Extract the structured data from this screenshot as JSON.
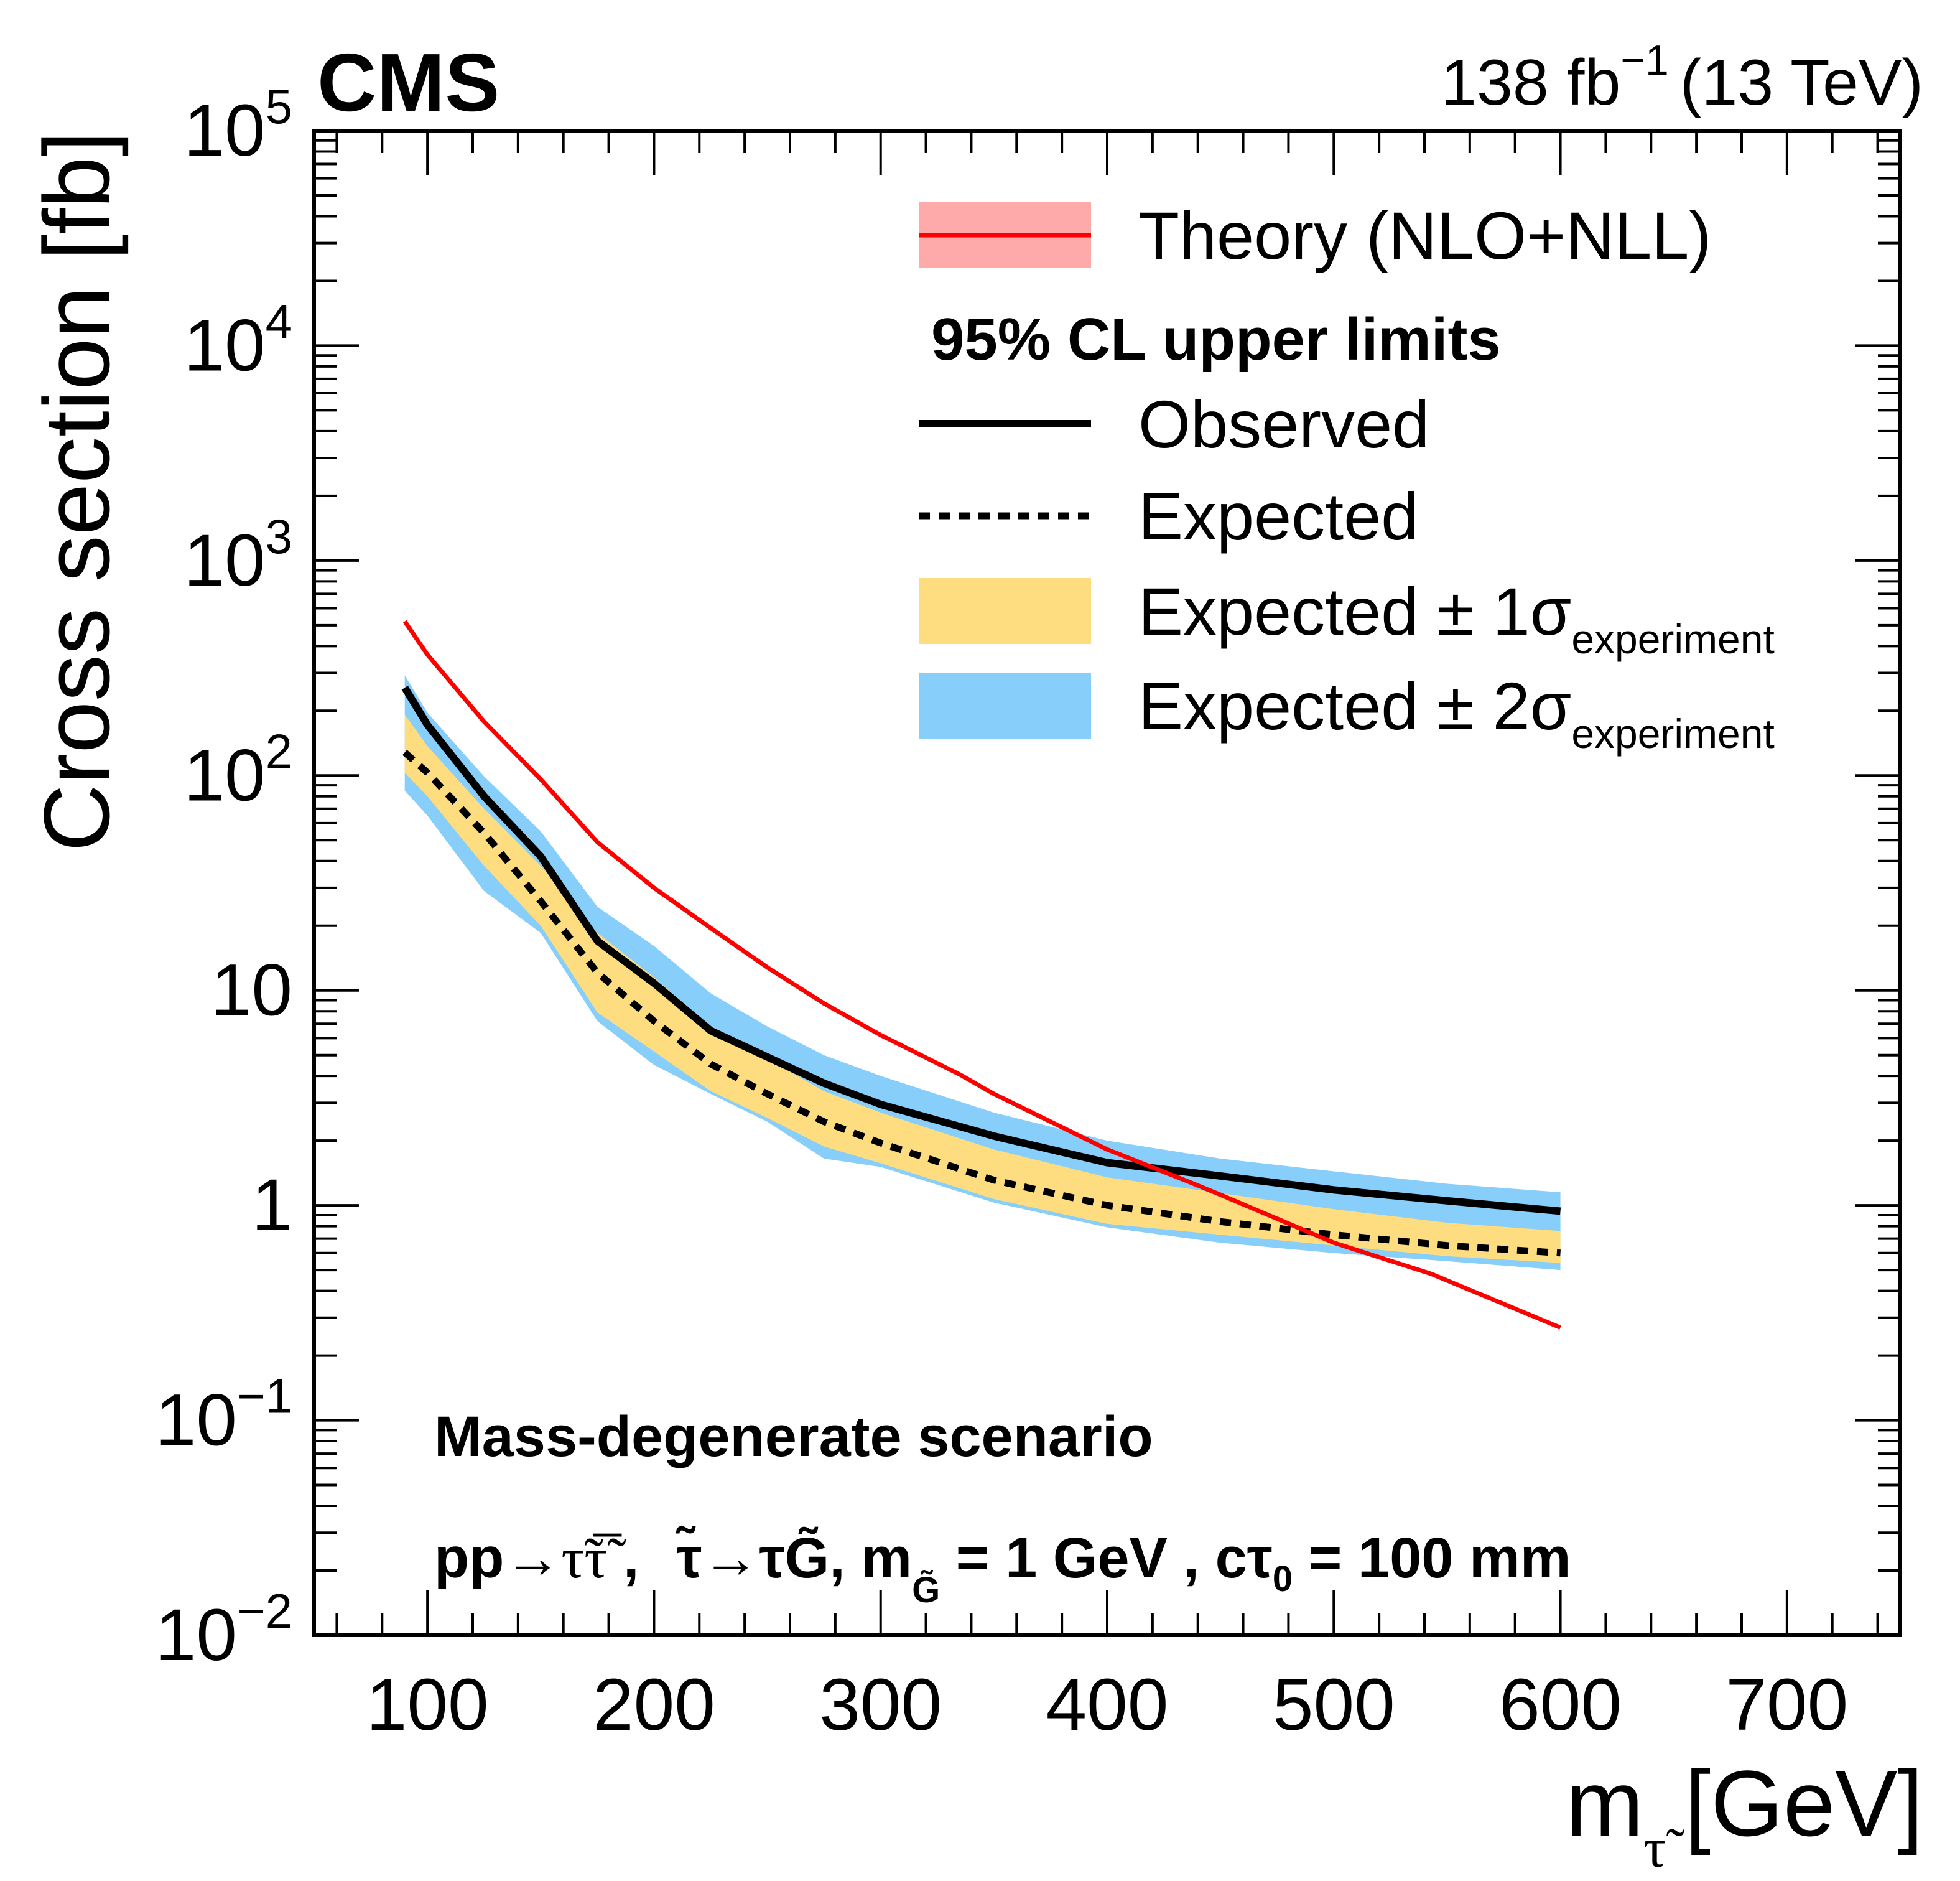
{
  "header": {
    "experiment_label": "CMS",
    "luminosity_value": "138 fb",
    "luminosity_exponent": "−1",
    "energy_label": "(13 TeV)"
  },
  "chart_data": {
    "type": "line",
    "title": "",
    "xlabel": "m",
    "xlabel_subscript": "τ̃",
    "xlabel_unit": "[GeV]",
    "ylabel": "Cross section [fb]",
    "xlim": [
      50,
      750
    ],
    "ylim": [
      0.01,
      100000
    ],
    "yscale": "log",
    "x_ticks": [
      100,
      200,
      300,
      400,
      500,
      600,
      700
    ],
    "x_tick_labels": [
      "100",
      "200",
      "300",
      "400",
      "500",
      "600",
      "700"
    ],
    "y_ticks": [
      {
        "value": 0.01,
        "base": "10",
        "exp": "−2"
      },
      {
        "value": 0.1,
        "base": "10",
        "exp": "−1"
      },
      {
        "value": 1,
        "base": "1",
        "exp": ""
      },
      {
        "value": 10,
        "base": "10",
        "exp": ""
      },
      {
        "value": 100,
        "base": "10",
        "exp": "2"
      },
      {
        "value": 1000,
        "base": "10",
        "exp": "3"
      },
      {
        "value": 10000,
        "base": "10",
        "exp": "4"
      },
      {
        "value": 100000,
        "base": "10",
        "exp": "5"
      }
    ],
    "grid": false,
    "legend_position": "top-right",
    "x": [
      90,
      100,
      125,
      150,
      175,
      200,
      225,
      250,
      275,
      300,
      350,
      400,
      450,
      500,
      550,
      600
    ],
    "series": [
      {
        "name": "Observed",
        "style": "solid",
        "color": "#000000",
        "values": [
          256,
          172,
          80,
          42,
          17,
          10.8,
          6.5,
          4.9,
          3.7,
          2.95,
          2.1,
          1.58,
          1.37,
          1.18,
          1.05,
          0.94
        ]
      },
      {
        "name": "Expected",
        "style": "dotted",
        "color": "#000000",
        "values": [
          128,
          103,
          54,
          26,
          12.1,
          7.2,
          4.55,
          3.3,
          2.45,
          1.95,
          1.31,
          1.0,
          0.84,
          0.73,
          0.65,
          0.6
        ]
      },
      {
        "name": "Expected +1σ",
        "role": "band1_up",
        "values": [
          192,
          137,
          70,
          38,
          18.5,
          11.5,
          6.8,
          4.8,
          3.4,
          2.7,
          1.82,
          1.35,
          1.14,
          0.96,
          0.83,
          0.76
        ]
      },
      {
        "name": "Expected −1σ",
        "role": "band1_down",
        "values": [
          103,
          80,
          38,
          20,
          7.9,
          5.2,
          3.4,
          2.55,
          1.88,
          1.57,
          1.07,
          0.82,
          0.73,
          0.65,
          0.58,
          0.54
        ]
      },
      {
        "name": "Expected +2σ",
        "role": "band2_up",
        "values": [
          292,
          196,
          99,
          55,
          24.5,
          16.1,
          9.7,
          6.8,
          5.0,
          4.0,
          2.7,
          2.0,
          1.65,
          1.44,
          1.26,
          1.15
        ]
      },
      {
        "name": "Expected −2σ",
        "role": "band2_down",
        "values": [
          85,
          65,
          29,
          18.5,
          7.2,
          4.5,
          3.3,
          2.45,
          1.65,
          1.51,
          1.03,
          0.79,
          0.67,
          0.6,
          0.55,
          0.5
        ]
      },
      {
        "name": "Theory (NLO+NLL)",
        "style": "solid",
        "color": "#ff0000",
        "x": [
          90,
          100,
          125,
          150,
          175,
          200,
          225,
          250,
          275,
          300,
          335,
          350,
          400,
          435,
          450,
          500,
          543,
          600
        ],
        "values": [
          521,
          365,
          178,
          96,
          49,
          30,
          19.5,
          12.8,
          8.7,
          6.2,
          4.06,
          3.3,
          1.82,
          1.3,
          1.12,
          0.67,
          0.48,
          0.27
        ]
      }
    ],
    "colors": {
      "band1": "#fedd80",
      "band2": "#87cefa",
      "theory_band": "#ffaaaa",
      "theory_line": "#ff0000",
      "observed": "#000000",
      "expected": "#000000"
    },
    "legend": {
      "items": [
        {
          "label": "Theory (NLO+NLL)",
          "subscript": "",
          "symbol": "theory"
        },
        {
          "label": "95% CL upper limits",
          "subscript": "",
          "symbol": "header"
        },
        {
          "label": "Observed",
          "subscript": "",
          "symbol": "solid"
        },
        {
          "label": "Expected",
          "subscript": "",
          "symbol": "dotted"
        },
        {
          "label": "Expected ± 1σ",
          "subscript": "experiment",
          "symbol": "band1"
        },
        {
          "label": "Expected ± 2σ",
          "subscript": "experiment",
          "symbol": "band2"
        }
      ]
    },
    "annotations": {
      "scenario": "Mass-degenerate scenario",
      "process_parts": {
        "pp": "pp→",
        "stau_pair": "τ̃τ̃̅",
        "sep1": " ,",
        "decay": "τ̃→τG̃",
        "mass_prefix": ", m",
        "mass_sub": "G̃",
        "mass_value": " = 1 GeV ,",
        "ctau": " cτ",
        "ctau_sub": "0",
        "ctau_value": " = 100 mm"
      }
    }
  }
}
